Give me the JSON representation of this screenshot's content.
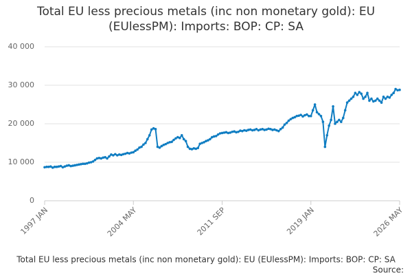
{
  "chart_data": {
    "type": "line",
    "title": "Total EU less precious metals (inc non monetary gold): EU (EUlessPM): Imports: BOP: CP: SA",
    "x_label": "Total EU less precious metals (inc non monetary gold): EU (EUlessPM): Imports: BOP: CP: SA",
    "source": "Source:",
    "categories": [
      "1997 JAN",
      null,
      null,
      null,
      null,
      null,
      null,
      null,
      null,
      null,
      null,
      null,
      null,
      null,
      null,
      null,
      null,
      null,
      null,
      null,
      null,
      null,
      null,
      null,
      null,
      null,
      null,
      null,
      null,
      null,
      null,
      null,
      null,
      null,
      null,
      null,
      null,
      null,
      null,
      null,
      null,
      null,
      null,
      null,
      "2004 MAY",
      null,
      null,
      null,
      null,
      null,
      null,
      null,
      null,
      null,
      null,
      null,
      null,
      null,
      null,
      null,
      null,
      null,
      null,
      null,
      null,
      null,
      null,
      null,
      null,
      null,
      null,
      null,
      null,
      null,
      null,
      null,
      null,
      null,
      null,
      null,
      null,
      null,
      null,
      null,
      null,
      null,
      null,
      null,
      "2011 SEP",
      null,
      null,
      null,
      null,
      null,
      null,
      null,
      null,
      null,
      null,
      null,
      null,
      null,
      null,
      null,
      null,
      null,
      null,
      null,
      null,
      null,
      null,
      null,
      null,
      null,
      null,
      null,
      null,
      null,
      null,
      null,
      null,
      null,
      null,
      null,
      null,
      null,
      null,
      null,
      null,
      null,
      null,
      null,
      "2019 JAN",
      null,
      null,
      null,
      null,
      null,
      null,
      null,
      null,
      null,
      null,
      null,
      null,
      null,
      null,
      null,
      null,
      null,
      null,
      null,
      null,
      null,
      null,
      null,
      null,
      null,
      null,
      null,
      null,
      null,
      null,
      null,
      null,
      null,
      null,
      null,
      null,
      null,
      null,
      null,
      null,
      null,
      null,
      null,
      "2026 MAY"
    ],
    "series": [
      {
        "color": "#0f7dc2",
        "values": [
          8700,
          8800,
          8800,
          8900,
          8600,
          8800,
          8800,
          8900,
          9000,
          8700,
          8900,
          9100,
          9200,
          9000,
          9100,
          9200,
          9300,
          9400,
          9500,
          9600,
          9600,
          9700,
          9900,
          10000,
          10200,
          10600,
          11000,
          11100,
          11000,
          11200,
          11300,
          11000,
          11500,
          12000,
          11800,
          12100,
          11800,
          12000,
          11900,
          12100,
          12200,
          12400,
          12300,
          12500,
          12600,
          13000,
          13300,
          13800,
          14000,
          14600,
          15000,
          16000,
          17000,
          18500,
          18800,
          18600,
          14000,
          13800,
          14200,
          14500,
          14700,
          15000,
          15200,
          15300,
          15800,
          16200,
          16500,
          16300,
          17000,
          16000,
          15500,
          14000,
          13500,
          13400,
          13600,
          13500,
          13700,
          14800,
          15000,
          15200,
          15500,
          15700,
          16000,
          16500,
          16700,
          16800,
          17200,
          17500,
          17600,
          17700,
          17800,
          17600,
          17700,
          17900,
          18000,
          17800,
          17900,
          18200,
          18100,
          18300,
          18200,
          18400,
          18500,
          18300,
          18400,
          18600,
          18300,
          18500,
          18600,
          18400,
          18500,
          18700,
          18600,
          18400,
          18500,
          18300,
          18100,
          18600,
          19000,
          19800,
          20200,
          20800,
          21200,
          21500,
          21700,
          22000,
          22100,
          22300,
          21900,
          22200,
          22400,
          22000,
          22000,
          23500,
          25000,
          23000,
          22500,
          22000,
          20500,
          14000,
          17000,
          19500,
          21000,
          24500,
          20000,
          20500,
          21000,
          20500,
          21500,
          23500,
          25500,
          26000,
          26500,
          27000,
          28000,
          27500,
          28200,
          27800,
          26500,
          27000,
          28000,
          26000,
          26500,
          25800,
          26000,
          26500,
          26000,
          25500,
          27000,
          26500,
          27000,
          26800,
          27500,
          28000,
          29000,
          28700,
          28800
        ]
      }
    ],
    "ylim": [
      0,
      40000
    ],
    "yticks": [
      0,
      {
        "value": 10000,
        "label": "10 000"
      },
      {
        "value": 20000,
        "label": "20 000"
      },
      {
        "value": 30000,
        "label": "30 000"
      },
      {
        "value": 40000,
        "label": "40 000"
      }
    ],
    "grid": true
  }
}
